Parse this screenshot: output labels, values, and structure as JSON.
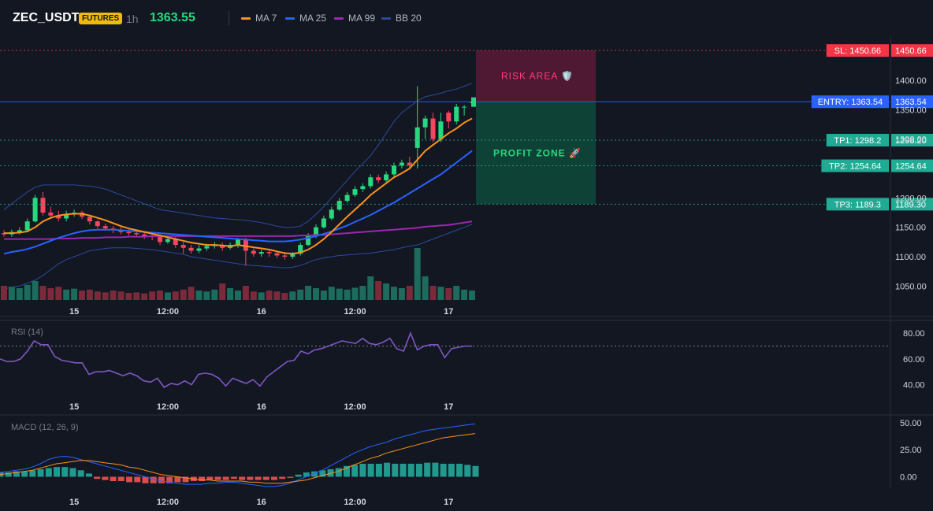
{
  "header": {
    "symbol": "ZEC_USDT",
    "badge": "FUTURES",
    "timeframe": "1h",
    "last_price": "1363.55",
    "indicators": [
      {
        "label": "MA 7",
        "color": "#f7931a"
      },
      {
        "label": "MA 25",
        "color": "#2962ff"
      },
      {
        "label": "MA 99",
        "color": "#9c27b0"
      },
      {
        "label": "BB 20",
        "color": "#1e3a8a"
      }
    ]
  },
  "zones": {
    "risk_label": "RISK AREA 🛡️",
    "profit_label": "PROFIT ZONE 🚀"
  },
  "levels": [
    {
      "tag": "SL: 1450.66",
      "price_text": "1450.66",
      "value": 1450.66,
      "color": "#f23645"
    },
    {
      "tag": "ENTRY: 1363.54",
      "price_text": "1363.54",
      "value": 1363.54,
      "color": "#2962ff"
    },
    {
      "tag": "TP1: 1298.2",
      "price_text": "1298.20",
      "value": 1298.2,
      "color": "#22ab94"
    },
    {
      "tag": "TP2: 1254.64",
      "price_text": "1254.64",
      "value": 1254.64,
      "color": "#22ab94"
    },
    {
      "tag": "TP3: 1189.3",
      "price_text": "1189.30",
      "value": 1189.3,
      "color": "#22ab94"
    }
  ],
  "price_axis": {
    "ticks": [
      "1400.00",
      "1350.00",
      "1300.00",
      "1200.00",
      "1150.00",
      "1100.00",
      "1050.00"
    ],
    "tick_values": [
      1400,
      1350,
      1300,
      1200,
      1150,
      1100,
      1050
    ],
    "ylim": [
      1025,
      1475
    ]
  },
  "time_axis": {
    "labels": [
      "15",
      "12:00",
      "16",
      "12:00",
      "17"
    ],
    "bar_index": [
      9,
      21,
      33,
      45,
      57
    ]
  },
  "rsi": {
    "title": "RSI (14)",
    "ticks": [
      "80.00",
      "60.00",
      "40.00"
    ],
    "tick_values": [
      80,
      60,
      40
    ],
    "ylim": [
      30,
      88
    ],
    "overbought": 70,
    "values": [
      60,
      58,
      58,
      60,
      66,
      74,
      71,
      71,
      62,
      59,
      58,
      57,
      57,
      48,
      50,
      50,
      51,
      49,
      47,
      49,
      47,
      43,
      42,
      45,
      38,
      41,
      40,
      43,
      40,
      48,
      49,
      48,
      45,
      39,
      45,
      43,
      41,
      44,
      39,
      46,
      50,
      54,
      58,
      59,
      66,
      64,
      67,
      68,
      70,
      72,
      74,
      73,
      72,
      76,
      72,
      71,
      73,
      76,
      68,
      66,
      80,
      67,
      70,
      71,
      71,
      61,
      68,
      69,
      70,
      70
    ]
  },
  "macd": {
    "title": "MACD (12, 26, 9)",
    "ticks": [
      "50.00",
      "25.00",
      "0.00"
    ],
    "tick_values": [
      50,
      25,
      0
    ],
    "ylim": [
      -12,
      55
    ],
    "macd_line": [
      4,
      5,
      6,
      7,
      9,
      12,
      16,
      18,
      19,
      18,
      16,
      14,
      12,
      10,
      8,
      6,
      4,
      2,
      0,
      -2,
      -4,
      -5,
      -6,
      -7,
      -7,
      -7,
      -6,
      -6,
      -5,
      -5,
      -6,
      -7,
      -8,
      -9,
      -9,
      -8,
      -6,
      -3,
      0,
      3,
      6,
      10,
      14,
      18,
      22,
      25,
      28,
      30,
      32,
      35,
      37,
      39,
      41,
      43,
      44,
      45,
      46,
      47,
      48,
      49
    ],
    "signal_line": [
      2,
      3,
      4,
      5,
      6,
      8,
      10,
      12,
      13,
      14,
      15,
      15,
      14,
      13,
      12,
      11,
      9,
      8,
      6,
      4,
      2,
      1,
      0,
      -1,
      -2,
      -3,
      -3,
      -4,
      -4,
      -4,
      -4,
      -5,
      -5,
      -6,
      -6,
      -6,
      -5,
      -4,
      -3,
      -1,
      1,
      3,
      5,
      8,
      11,
      14,
      17,
      19,
      22,
      24,
      26,
      28,
      30,
      32,
      34,
      36,
      37,
      38,
      39,
      40
    ],
    "histogram": [
      4,
      4,
      5,
      5,
      6,
      7,
      8,
      9,
      9,
      8,
      6,
      3,
      -2,
      -3,
      -4,
      -4,
      -5,
      -5,
      -6,
      -6,
      -6,
      -6,
      -5,
      -5,
      -4,
      -4,
      -3,
      -3,
      -3,
      -2,
      -3,
      -3,
      -3,
      -3,
      -3,
      -2,
      -1,
      2,
      4,
      5,
      6,
      7,
      8,
      10,
      11,
      12,
      12,
      12,
      13,
      12,
      12,
      12,
      12,
      13,
      13,
      12,
      12,
      12,
      11,
      10
    ]
  },
  "chart_data": {
    "type": "candlestick",
    "title": "",
    "xlabel": "",
    "ylabel": "",
    "ylim": [
      1025,
      1475
    ],
    "bars": {
      "open": [
        1140,
        1138,
        1142,
        1145,
        1160,
        1200,
        1175,
        1170,
        1165,
        1172,
        1175,
        1168,
        1160,
        1152,
        1148,
        1145,
        1142,
        1140,
        1138,
        1135,
        1134,
        1125,
        1130,
        1120,
        1115,
        1110,
        1114,
        1118,
        1120,
        1115,
        1120,
        1130,
        1110,
        1105,
        1108,
        1106,
        1102,
        1100,
        1105,
        1120,
        1135,
        1150,
        1165,
        1180,
        1195,
        1205,
        1215,
        1220,
        1235,
        1230,
        1240,
        1255,
        1260,
        1285,
        1320,
        1335,
        1300,
        1345,
        1330,
        1355,
        1363
      ],
      "close": [
        1138,
        1142,
        1145,
        1160,
        1200,
        1175,
        1170,
        1165,
        1172,
        1175,
        1168,
        1160,
        1152,
        1148,
        1145,
        1142,
        1140,
        1138,
        1135,
        1134,
        1125,
        1130,
        1120,
        1115,
        1110,
        1114,
        1118,
        1120,
        1115,
        1120,
        1130,
        1110,
        1105,
        1108,
        1106,
        1102,
        1100,
        1105,
        1120,
        1135,
        1150,
        1165,
        1180,
        1195,
        1205,
        1215,
        1220,
        1235,
        1230,
        1240,
        1255,
        1260,
        1255,
        1320,
        1335,
        1300,
        1330,
        1330,
        1355,
        1355,
        1363
      ],
      "high": [
        1145,
        1146,
        1150,
        1165,
        1205,
        1210,
        1185,
        1178,
        1178,
        1180,
        1178,
        1170,
        1162,
        1156,
        1152,
        1150,
        1148,
        1146,
        1143,
        1140,
        1138,
        1134,
        1133,
        1125,
        1120,
        1120,
        1122,
        1125,
        1124,
        1124,
        1132,
        1132,
        1114,
        1112,
        1112,
        1110,
        1108,
        1108,
        1124,
        1140,
        1155,
        1170,
        1185,
        1200,
        1210,
        1220,
        1225,
        1240,
        1240,
        1245,
        1260,
        1265,
        1270,
        1390,
        1340,
        1345,
        1345,
        1348,
        1360,
        1358,
        1365
      ],
      "low": [
        1134,
        1134,
        1138,
        1142,
        1158,
        1170,
        1165,
        1160,
        1160,
        1168,
        1164,
        1155,
        1148,
        1144,
        1140,
        1138,
        1136,
        1134,
        1130,
        1128,
        1120,
        1122,
        1115,
        1105,
        1105,
        1106,
        1110,
        1114,
        1110,
        1112,
        1115,
        1085,
        1100,
        1100,
        1100,
        1098,
        1095,
        1096,
        1102,
        1118,
        1132,
        1148,
        1162,
        1178,
        1192,
        1202,
        1210,
        1216,
        1225,
        1226,
        1236,
        1250,
        1248,
        1250,
        1300,
        1295,
        1295,
        1318,
        1325,
        1340,
        1358
      ],
      "volume": [
        30,
        28,
        25,
        32,
        40,
        30,
        25,
        28,
        22,
        24,
        20,
        22,
        18,
        16,
        20,
        18,
        15,
        16,
        14,
        18,
        20,
        16,
        18,
        22,
        28,
        20,
        18,
        22,
        35,
        25,
        20,
        30,
        18,
        16,
        20,
        18,
        15,
        18,
        22,
        30,
        25,
        20,
        28,
        24,
        22,
        26,
        30,
        50,
        40,
        35,
        28,
        25,
        30,
        110,
        50,
        30,
        28,
        25,
        30,
        22,
        20
      ]
    },
    "ma7": [
      1140,
      1140,
      1141,
      1143,
      1150,
      1160,
      1166,
      1170,
      1172,
      1173,
      1173,
      1170,
      1166,
      1162,
      1157,
      1152,
      1148,
      1145,
      1142,
      1139,
      1136,
      1133,
      1130,
      1127,
      1124,
      1122,
      1120,
      1120,
      1119,
      1118,
      1120,
      1118,
      1116,
      1114,
      1112,
      1109,
      1106,
      1105,
      1107,
      1112,
      1120,
      1130,
      1142,
      1155,
      1168,
      1180,
      1192,
      1205,
      1215,
      1225,
      1235,
      1242,
      1250,
      1265,
      1280,
      1290,
      1300,
      1310,
      1318,
      1328,
      1335
    ],
    "ma25": [
      1105,
      1108,
      1110,
      1113,
      1117,
      1122,
      1127,
      1132,
      1136,
      1140,
      1143,
      1145,
      1146,
      1146,
      1146,
      1145,
      1144,
      1143,
      1142,
      1141,
      1140,
      1139,
      1138,
      1137,
      1136,
      1135,
      1134,
      1133,
      1132,
      1131,
      1130,
      1129,
      1128,
      1127,
      1126,
      1126,
      1126,
      1127,
      1129,
      1132,
      1135,
      1139,
      1143,
      1148,
      1153,
      1159,
      1165,
      1171,
      1178,
      1185,
      1192,
      1200,
      1208,
      1216,
      1224,
      1232,
      1240,
      1250,
      1260,
      1270,
      1280
    ],
    "ma99": [
      1130,
      1130,
      1130,
      1130,
      1130,
      1130,
      1130,
      1131,
      1131,
      1131,
      1132,
      1132,
      1132,
      1133,
      1133,
      1133,
      1134,
      1134,
      1134,
      1135,
      1135,
      1135,
      1135,
      1135,
      1135,
      1135,
      1135,
      1135,
      1135,
      1135,
      1135,
      1135,
      1135,
      1135,
      1135,
      1135,
      1135,
      1135,
      1136,
      1136,
      1137,
      1137,
      1138,
      1139,
      1140,
      1141,
      1142,
      1143,
      1144,
      1145,
      1146,
      1147,
      1148,
      1149,
      1151,
      1152,
      1153,
      1154,
      1156,
      1158,
      1160
    ],
    "bb_upper": [
      1180,
      1190,
      1200,
      1210,
      1218,
      1222,
      1222,
      1222,
      1222,
      1222,
      1221,
      1220,
      1218,
      1215,
      1210,
      1205,
      1200,
      1195,
      1190,
      1185,
      1180,
      1178,
      1176,
      1174,
      1172,
      1170,
      1168,
      1166,
      1165,
      1164,
      1163,
      1162,
      1160,
      1158,
      1155,
      1152,
      1150,
      1150,
      1152,
      1160,
      1172,
      1185,
      1200,
      1215,
      1230,
      1245,
      1258,
      1272,
      1290,
      1310,
      1330,
      1345,
      1355,
      1365,
      1372,
      1375,
      1378,
      1382,
      1385,
      1390,
      1395
    ],
    "bb_lower": [
      1045,
      1048,
      1050,
      1055,
      1060,
      1068,
      1078,
      1088,
      1095,
      1100,
      1105,
      1110,
      1112,
      1114,
      1115,
      1115,
      1115,
      1114,
      1113,
      1112,
      1110,
      1108,
      1106,
      1104,
      1100,
      1098,
      1096,
      1094,
      1092,
      1090,
      1088,
      1086,
      1085,
      1084,
      1083,
      1082,
      1081,
      1082,
      1085,
      1090,
      1095,
      1098,
      1100,
      1102,
      1103,
      1104,
      1105,
      1106,
      1108,
      1110,
      1112,
      1115,
      1118,
      1120,
      1125,
      1130,
      1135,
      1140,
      1145,
      1150,
      1155
    ]
  }
}
